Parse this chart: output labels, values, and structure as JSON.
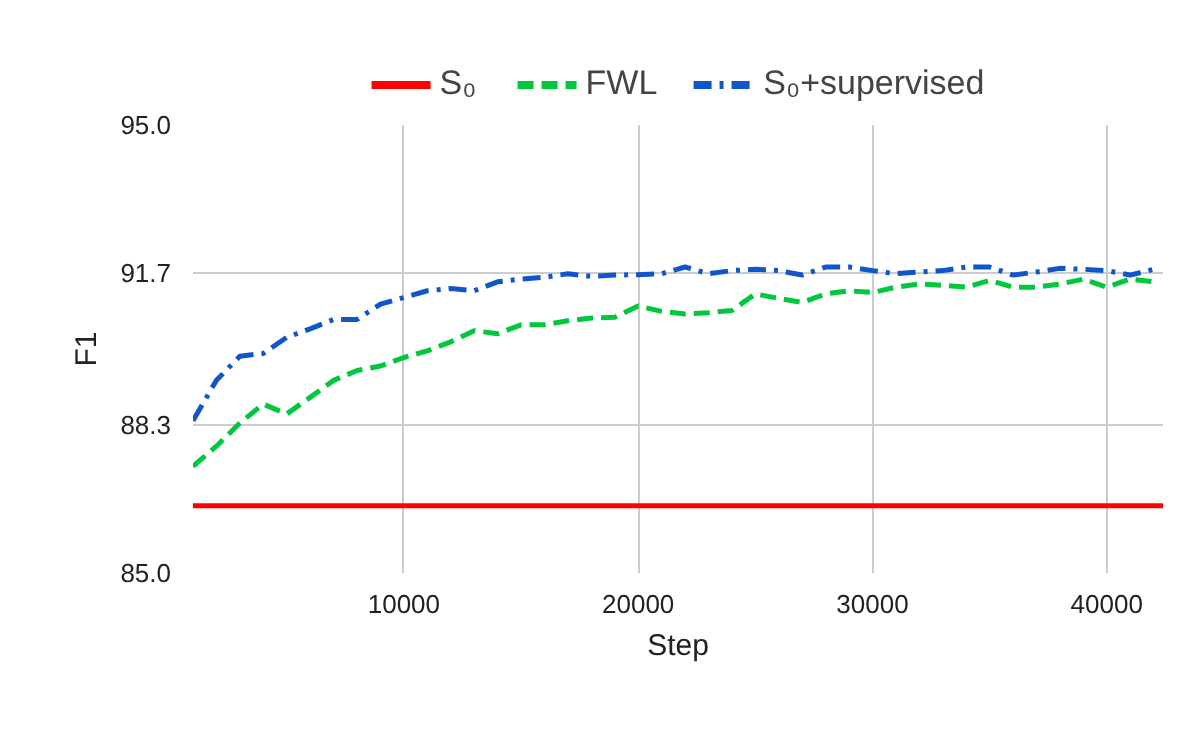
{
  "chart_data": {
    "type": "line",
    "xlabel": "Step",
    "ylabel": "F1",
    "xlim": [
      1000,
      42400
    ],
    "xticks": [
      10000,
      20000,
      30000,
      40000
    ],
    "ylim": [
      85,
      95
    ],
    "yticks": [
      {
        "value": 85,
        "label": "85.0"
      },
      {
        "value": 88.3,
        "label": "88.3"
      },
      {
        "value": 91.7,
        "label": "91.7"
      },
      {
        "value": 95,
        "label": "95.0"
      }
    ],
    "grid": true,
    "legend": "top",
    "x": [
      1000,
      2000,
      3000,
      4000,
      5000,
      6000,
      7000,
      8000,
      9000,
      10000,
      11000,
      12000,
      13000,
      14000,
      15000,
      16000,
      17000,
      18000,
      19000,
      20000,
      21000,
      22000,
      23000,
      24000,
      25000,
      26000,
      27000,
      28000,
      29000,
      30000,
      31000,
      32000,
      33000,
      34000,
      35000,
      36000,
      37000,
      38000,
      39000,
      40000,
      41000,
      42000
    ],
    "series": [
      {
        "name": "S₀",
        "color": "#ff0000",
        "line_style": "solid",
        "x": [
          1000,
          42400
        ],
        "values": [
          86.5,
          86.5
        ]
      },
      {
        "name": "FWL",
        "color": "#00c83c",
        "line_style": "dashed",
        "values": [
          87.38,
          87.83,
          88.35,
          88.77,
          88.55,
          88.92,
          89.3,
          89.52,
          89.62,
          89.81,
          89.96,
          90.16,
          90.41,
          90.34,
          90.54,
          90.54,
          90.63,
          90.69,
          90.71,
          90.96,
          90.84,
          90.78,
          90.81,
          90.86,
          91.23,
          91.13,
          91.04,
          91.23,
          91.3,
          91.26,
          91.38,
          91.45,
          91.42,
          91.38,
          91.53,
          91.38,
          91.38,
          91.45,
          91.56,
          91.38,
          91.56,
          91.5
        ]
      },
      {
        "name": "S₀+supervised",
        "color": "#1155cc",
        "line_style": "dashdot",
        "values": [
          88.4,
          89.3,
          89.84,
          89.9,
          90.26,
          90.45,
          90.66,
          90.66,
          91.0,
          91.15,
          91.3,
          91.35,
          91.3,
          91.5,
          91.56,
          91.6,
          91.68,
          91.62,
          91.65,
          91.66,
          91.68,
          91.83,
          91.68,
          91.75,
          91.78,
          91.75,
          91.65,
          91.83,
          91.83,
          91.75,
          91.68,
          91.72,
          91.75,
          91.83,
          91.83,
          91.65,
          91.72,
          91.8,
          91.78,
          91.75,
          91.65,
          91.78
        ]
      }
    ]
  }
}
